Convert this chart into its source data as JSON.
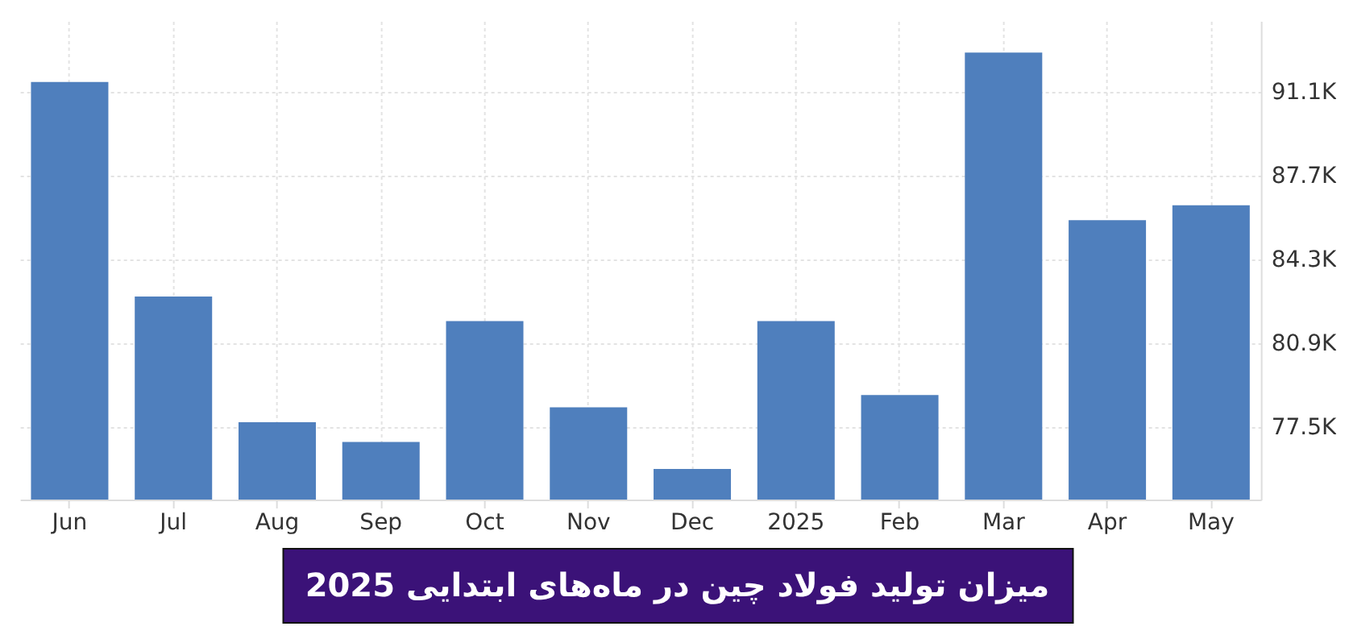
{
  "chart_data": {
    "type": "bar",
    "title": "میزان تولید فولاد چین در ماه‌های ابتدایی 2025",
    "categories": [
      "Jun",
      "Jul",
      "Aug",
      "Sep",
      "Oct",
      "Nov",
      "Dec",
      "2025",
      "Feb",
      "Mar",
      "Apr",
      "May"
    ],
    "values": [
      91500,
      82800,
      77700,
      76900,
      81800,
      78300,
      75800,
      81800,
      78800,
      92700,
      85900,
      86500
    ],
    "color": "#4f7fbd",
    "ylim": [
      74560,
      93980
    ],
    "yticks": [
      {
        "value": 77500,
        "label": "77.5K"
      },
      {
        "value": 80900,
        "label": "80.9K"
      },
      {
        "value": 84300,
        "label": "84.3K"
      },
      {
        "value": 87700,
        "label": "87.7K"
      },
      {
        "value": 91100,
        "label": "91.1K"
      }
    ],
    "grid": true
  }
}
